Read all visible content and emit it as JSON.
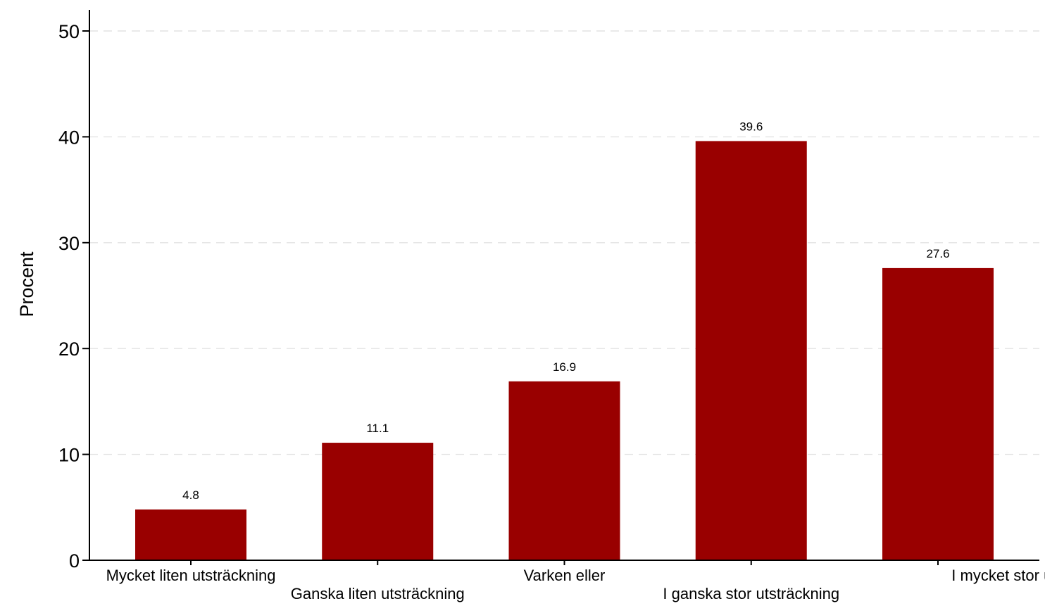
{
  "chart_data": {
    "type": "bar",
    "title": "",
    "xlabel": "",
    "ylabel": "Procent",
    "categories": [
      "Mycket liten utsträckning",
      "Ganska liten utsträckning",
      "Varken eller",
      "I ganska stor utsträckning",
      "I mycket stor utsträckning"
    ],
    "values": [
      4.8,
      11.1,
      16.9,
      39.6,
      27.6
    ],
    "data_labels": [
      "4.8",
      "11.1",
      "16.9",
      "39.6",
      "27.6"
    ],
    "ylim": [
      0,
      50
    ],
    "yticks": [
      0,
      10,
      20,
      30,
      40,
      50
    ],
    "ytick_labels": [
      "0",
      "10",
      "20",
      "30",
      "40",
      "50"
    ],
    "grid": true,
    "legend": "none",
    "colors": {
      "bar": "#990000",
      "grid": "#e3e3e3",
      "axis": "#000000",
      "background": "#ffffff"
    }
  }
}
